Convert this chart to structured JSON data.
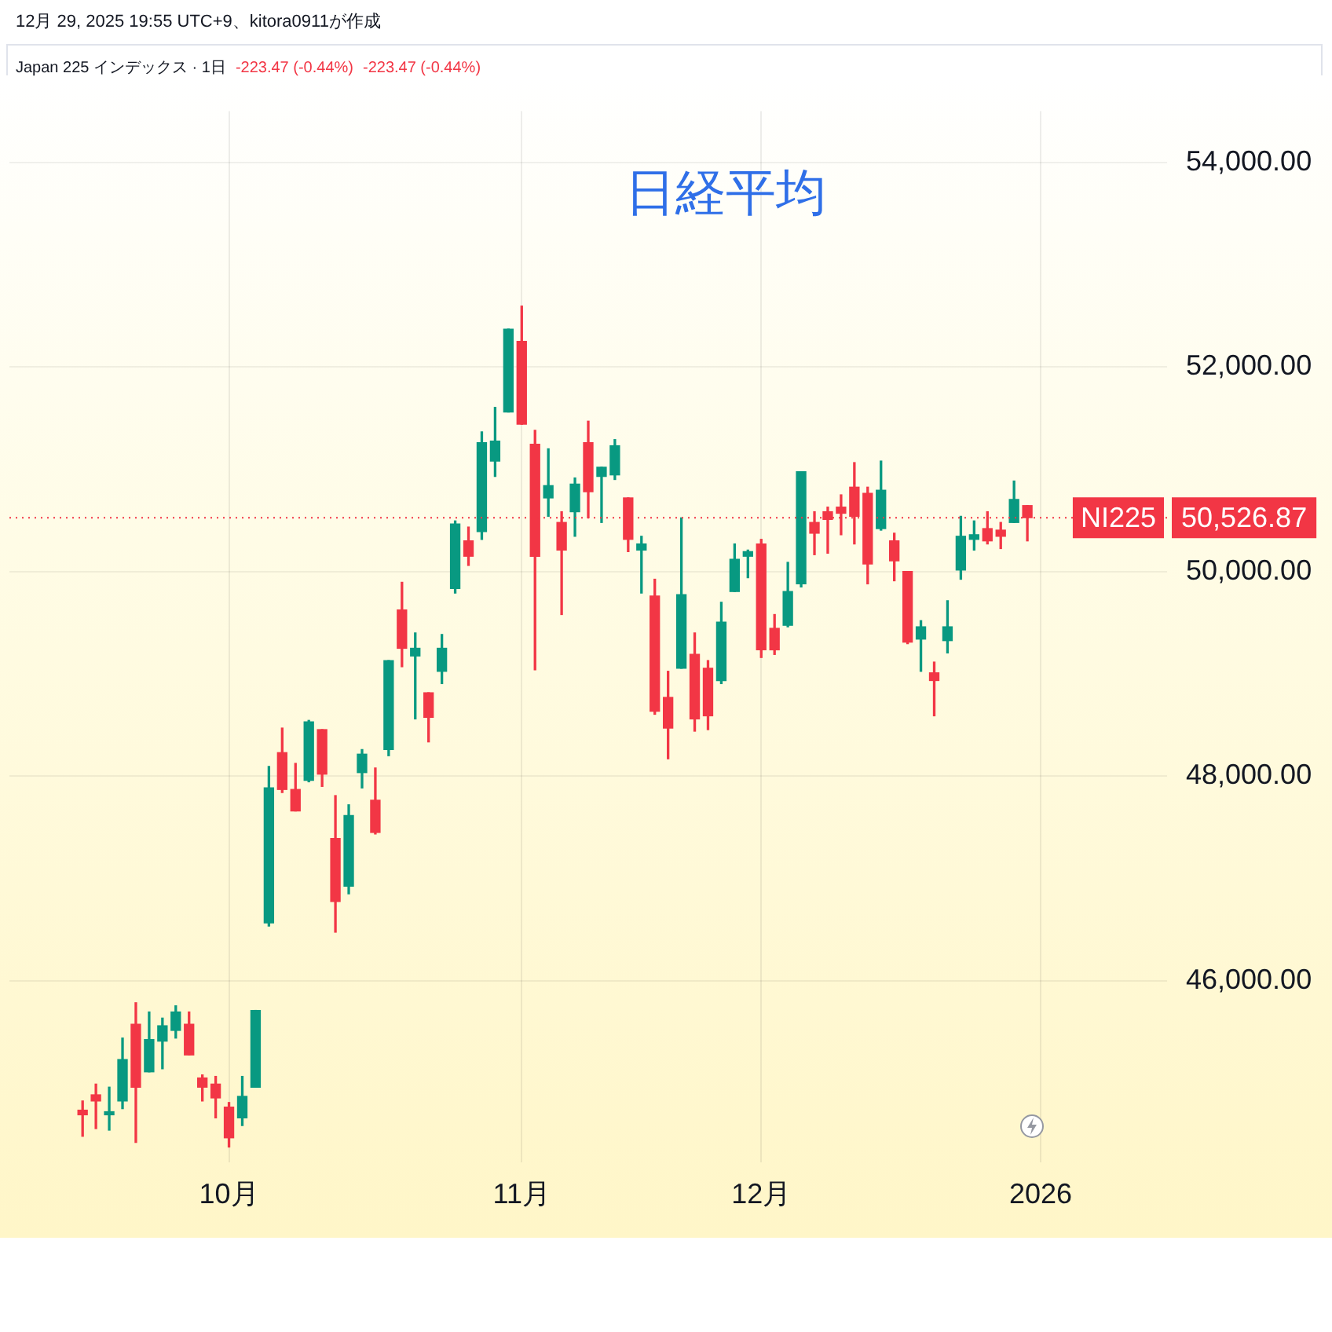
{
  "chart_data": {
    "type": "candlestick",
    "title": "日経平均",
    "annotations": [
      "12月 29, 2025 19:55 UTC+9、kitora0911が作成",
      "Japan 225 インデックス · 1日",
      "-223.47 (-0.44%)",
      "-223.47 (-0.44%)",
      "50,526.87"
    ],
    "categories": [
      null,
      null,
      null,
      null,
      null,
      null,
      null,
      null,
      null,
      null,
      null,
      null,
      null,
      null,
      null,
      null,
      "10月",
      null,
      null,
      null,
      null,
      null,
      null,
      null,
      null,
      null,
      null,
      null,
      null,
      null,
      null,
      null,
      null,
      null,
      null,
      null,
      null,
      null,
      "11月",
      null,
      null,
      null,
      null,
      null,
      null,
      null,
      null,
      null,
      null,
      null,
      null,
      null,
      null,
      null,
      null,
      null,
      "12月",
      null,
      null,
      null,
      null,
      null,
      null,
      null,
      null,
      null,
      null,
      null,
      null,
      null,
      null,
      null,
      null,
      null,
      null,
      null,
      null,
      "2026",
      null,
      null,
      null,
      null,
      null,
      null,
      null,
      null,
      null
    ],
    "ohlc": [
      null,
      null,
      null,
      null,
      null,
      [
        44735,
        44825,
        44480,
        44690
      ],
      [
        44885,
        44990,
        44555,
        44825
      ],
      [
        44690,
        44960,
        44540,
        44720
      ],
      [
        44825,
        45440,
        44750,
        45230
      ],
      [
        45575,
        45785,
        44420,
        44960
      ],
      [
        45110,
        45695,
        45110,
        45425
      ],
      [
        45410,
        45635,
        45140,
        45560
      ],
      [
        45515,
        45755,
        45440,
        45695
      ],
      [
        45575,
        45695,
        45275,
        45275
      ],
      [
        45050,
        45080,
        44825,
        44960
      ],
      [
        44990,
        45065,
        44660,
        44855
      ],
      [
        44765,
        44810,
        44375,
        44465
      ],
      [
        44660,
        45065,
        44585,
        44870
      ],
      [
        44960,
        45710,
        44960,
        45710
      ],
      [
        46565,
        48095,
        46535,
        47885
      ],
      [
        48230,
        48470,
        47840,
        47870
      ],
      [
        47870,
        48125,
        47660,
        47660
      ],
      [
        47960,
        48545,
        47945,
        48530
      ],
      [
        48455,
        48455,
        47900,
        48020
      ],
      [
        47390,
        47810,
        46475,
        46775
      ],
      [
        46925,
        47720,
        46850,
        47615
      ],
      [
        48035,
        48260,
        47885,
        48215
      ],
      [
        47765,
        48080,
        47435,
        47450
      ],
      [
        48260,
        49130,
        48200,
        49130
      ],
      [
        49625,
        49895,
        49070,
        49250
      ],
      [
        49175,
        49400,
        48560,
        49250
      ],
      [
        48815,
        48815,
        48335,
        48575
      ],
      [
        49025,
        49385,
        48905,
        49250
      ],
      [
        49835,
        50495,
        49790,
        50465
      ],
      [
        50300,
        50435,
        50060,
        50150
      ],
      [
        50390,
        51365,
        50315,
        51260
      ],
      [
        51080,
        51605,
        50930,
        51275
      ],
      [
        51560,
        52370,
        51560,
        52370
      ],
      [
        52250,
        52595,
        51440,
        51440
      ],
      [
        51245,
        51380,
        49040,
        50150
      ],
      [
        50720,
        51200,
        50540,
        50840
      ],
      [
        50480,
        50585,
        49580,
        50210
      ],
      [
        50585,
        50915,
        50345,
        50855
      ],
      [
        51260,
        51470,
        50525,
        50780
      ],
      [
        50930,
        51020,
        50480,
        51020
      ],
      [
        50945,
        51290,
        50900,
        51230
      ],
      [
        50720,
        50720,
        50195,
        50315
      ],
      [
        50210,
        50345,
        49790,
        50270
      ],
      [
        49760,
        49925,
        48605,
        48635
      ],
      [
        48770,
        49025,
        48170,
        48470
      ],
      [
        49055,
        50525,
        49055,
        49775
      ],
      [
        49190,
        49400,
        48440,
        48560
      ],
      [
        49055,
        49130,
        48455,
        48590
      ],
      [
        48935,
        49700,
        48905,
        49505
      ],
      [
        49805,
        50270,
        49805,
        50120
      ],
      [
        50150,
        50210,
        49940,
        50195
      ],
      [
        50270,
        50315,
        49160,
        49235
      ],
      [
        49445,
        49580,
        49190,
        49235
      ],
      [
        49475,
        50090,
        49460,
        49805
      ],
      [
        49880,
        50975,
        49850,
        50975
      ],
      [
        50480,
        50585,
        50165,
        50375
      ],
      [
        50585,
        50630,
        50180,
        50510
      ],
      [
        50630,
        50750,
        50360,
        50570
      ],
      [
        50825,
        51065,
        50270,
        50540
      ],
      [
        50765,
        50825,
        49880,
        50075
      ],
      [
        50420,
        51080,
        50405,
        50795
      ],
      [
        50300,
        50375,
        49910,
        50105
      ],
      [
        50000,
        50000,
        49295,
        49310
      ],
      [
        49340,
        49520,
        49025,
        49460
      ],
      [
        49010,
        49115,
        48590,
        48935
      ],
      [
        49325,
        49715,
        49205,
        49460
      ],
      [
        50015,
        50540,
        49925,
        50345
      ],
      [
        50315,
        50495,
        50210,
        50360
      ],
      [
        50420,
        50585,
        50270,
        50300
      ],
      [
        50405,
        50480,
        50225,
        50345
      ],
      [
        50480,
        50885,
        50480,
        50705
      ],
      [
        50645,
        50645,
        50300,
        50526.87
      ],
      null,
      null,
      null,
      null,
      null,
      null,
      null,
      null,
      null,
      null
    ],
    "colors": [
      null,
      null,
      null,
      null,
      null,
      "#f23645",
      "#f23645",
      "#089981",
      "#089981",
      "#f23645",
      "#089981",
      "#089981",
      "#089981",
      "#f23645",
      "#f23645",
      "#f23645",
      "#f23645",
      "#089981",
      "#089981",
      "#089981",
      "#f23645",
      "#f23645",
      "#089981",
      "#f23645",
      "#f23645",
      "#089981",
      "#089981",
      "#f23645",
      "#089981",
      "#f23645",
      "#089981",
      "#f23645",
      "#089981",
      "#089981",
      "#f23645",
      "#089981",
      "#089981",
      "#089981",
      "#f23645",
      "#f23645",
      "#089981",
      "#f23645",
      "#089981",
      "#f23645",
      "#089981",
      "#089981",
      "#f23645",
      "#089981",
      "#f23645",
      "#f23645",
      "#089981",
      "#f23645",
      "#f23645",
      "#089981",
      "#089981",
      "#089981",
      "#f23645",
      "#f23645",
      "#089981",
      "#089981",
      "#f23645",
      "#f23645",
      "#f23645",
      "#f23645",
      "#f23645",
      "#089981",
      "#f23645",
      "#f23645",
      "#089981",
      "#f23645",
      "#089981",
      "#089981",
      "#089981",
      "#f23645",
      "#f23645",
      "#089981",
      "#f23645",
      null,
      null,
      null,
      null,
      null,
      null,
      null,
      null,
      null,
      null
    ],
    "ylim": [
      44225,
      54500
    ],
    "yticks": [
      {
        "value": 46000,
        "label": "46,000.00"
      },
      {
        "value": 48000,
        "label": "48,000.00"
      },
      {
        "value": 50000,
        "label": "50,000.00"
      },
      {
        "value": 52000,
        "label": "52,000.00"
      },
      {
        "value": 54000,
        "label": "54,000.00"
      }
    ],
    "ref_lines": [
      {
        "axis": "y",
        "value": 50526.87,
        "label": "NI225",
        "color": "#f23645",
        "line_style": "dotted"
      }
    ],
    "grid": true,
    "legend": false
  }
}
